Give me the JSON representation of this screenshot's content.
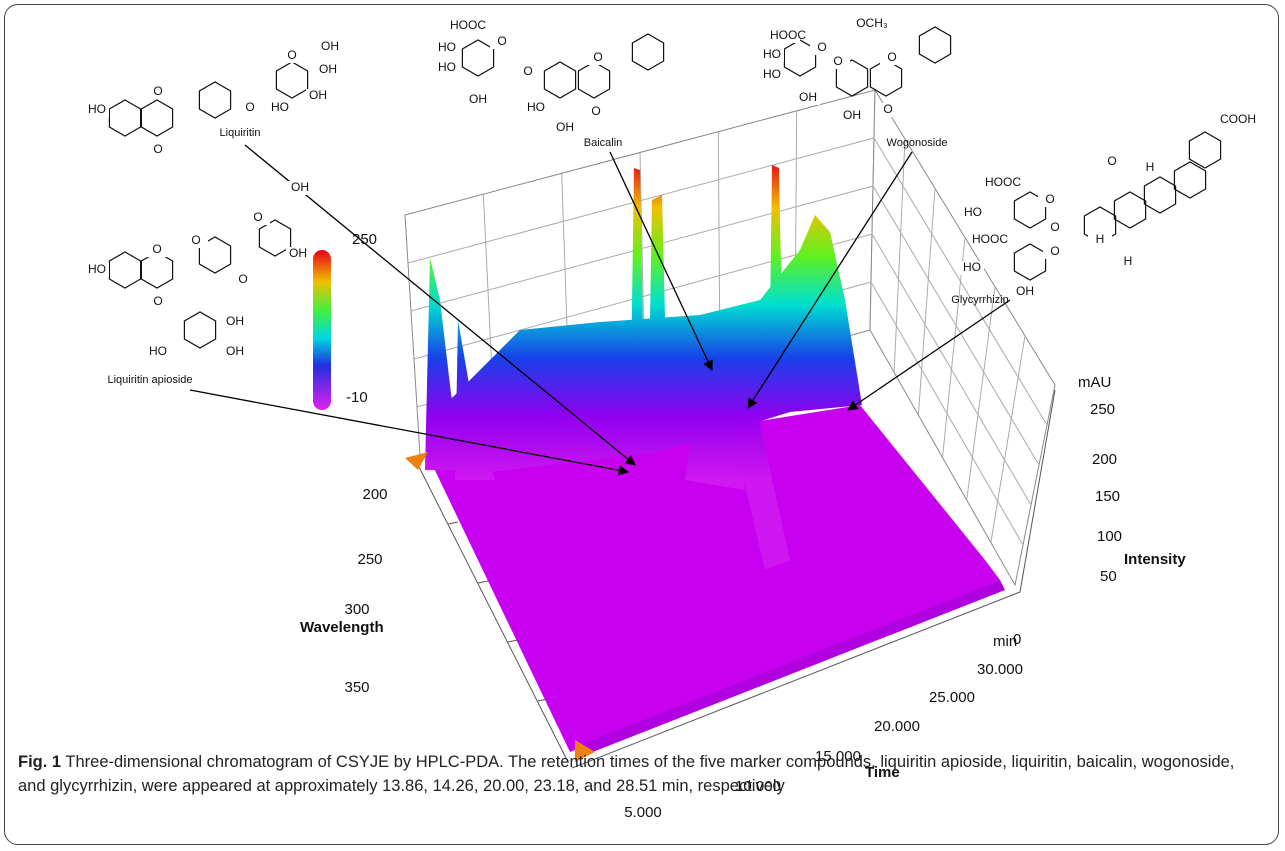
{
  "figure": {
    "compounds": [
      {
        "label": "Liquiritin",
        "atoms": [
          "HO",
          "O",
          "O",
          "O",
          "O",
          "OH",
          "OH",
          "OH",
          "HO"
        ]
      },
      {
        "label": "Liquiritin apioside",
        "atoms": [
          "OH",
          "O",
          "HO",
          "O",
          "O",
          "OH",
          "O",
          "O",
          "OH",
          "HO",
          "OH"
        ]
      },
      {
        "label": "Baicalin",
        "atoms": [
          "HOOC",
          "O",
          "HO",
          "HO",
          "OH",
          "O",
          "O",
          "HO",
          "OH",
          "O"
        ]
      },
      {
        "label": "Wogonoside",
        "atoms": [
          "HOOC",
          "O",
          "HO",
          "HO",
          "OH",
          "O",
          "OCH₃",
          "O",
          "OH",
          "O"
        ]
      },
      {
        "label": "Glycyrrhizin",
        "atoms": [
          "COOH",
          "O",
          "HOOC",
          "O",
          "HO",
          "O",
          "HOOC",
          "O",
          "HO",
          "OH",
          "H",
          "H",
          "H"
        ]
      }
    ],
    "color_scale": {
      "max": "250",
      "min": "-10"
    },
    "wavelength_axis": {
      "label": "Wavelength",
      "ticks": [
        "200",
        "250",
        "300",
        "350"
      ]
    },
    "time_axis": {
      "label": "Time",
      "unit": "min",
      "ticks": [
        "5.000",
        "10.000",
        "15.000",
        "20.000",
        "25.000",
        "30.000"
      ]
    },
    "intensity_axis": {
      "label": "Intensity",
      "unit": "mAU",
      "ticks": [
        "0",
        "50",
        "100",
        "150",
        "200",
        "250"
      ]
    }
  },
  "caption": {
    "label": "Fig. 1",
    "text": "Three-dimensional chromatogram of CSYJE by HPLC-PDA. The retention times of the five marker compounds, liquiritin apioside, liquiritin, baicalin, wogonoside, and glycyrrhizin, were appeared at approximately 13.86, 14.26, 20.00, 23.18, and 28.51 min, respectively"
  }
}
